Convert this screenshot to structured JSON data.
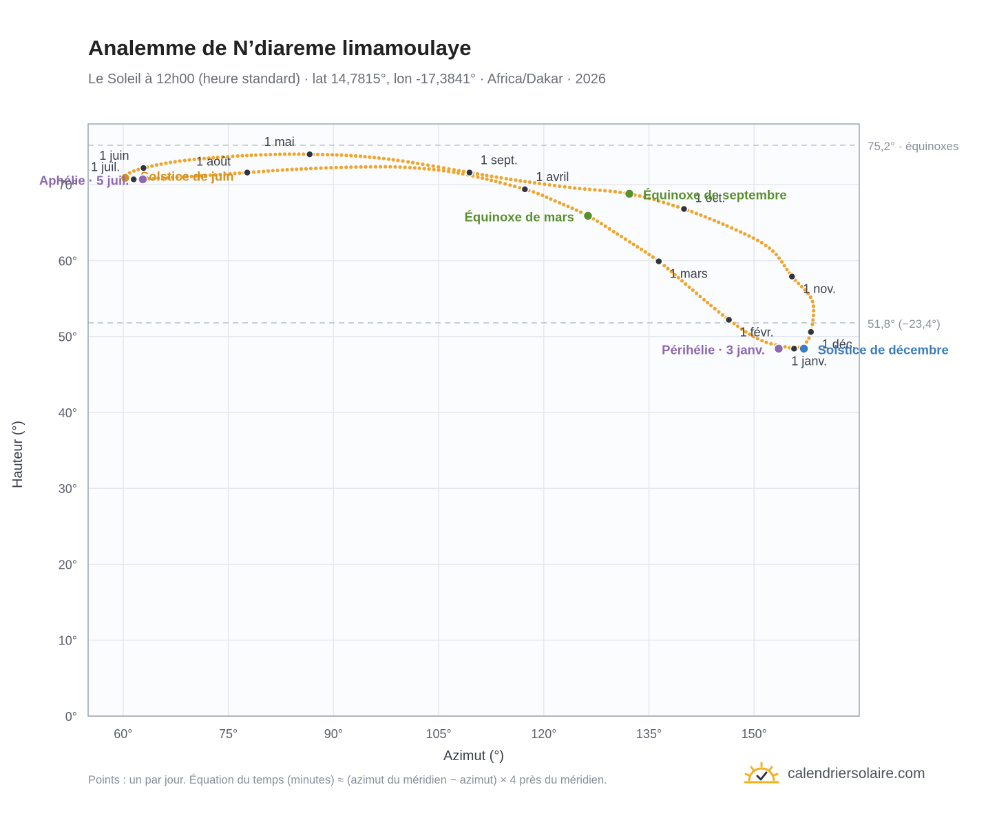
{
  "title": "Analemme de N’diareme limamoulaye",
  "subtitle": "Le Soleil à 12h00 (heure standard) · lat 14,7815°, lon -17,3841° · Africa/Dakar · 2026",
  "footnote": "Points : un par jour. Équation du temps (minutes) ≈ (azimut du méridien − azimut) × 4 près du méridien.",
  "brand": {
    "name": "calendriersolaire.com",
    "icon": "sun-checkmark-icon"
  },
  "colors": {
    "curve": "#f2a42a",
    "month_marker": "#2f343e",
    "equinox": "#5a8f2e",
    "solstice_june": "#d4921e",
    "solstice_december": "#3a7dc4",
    "apsis": "#8e68b0",
    "reference_line": "#b8c0cc",
    "plot_background": "#fbfcfe",
    "grid": "#e3e8ef",
    "axis_frame": "#9aa3b0"
  },
  "chart_data": {
    "type": "scatter",
    "xlabel": "Azimut (°)",
    "ylabel": "Hauteur (°)",
    "xlim": [
      55,
      165
    ],
    "ylim": [
      0,
      78
    ],
    "x_ticks": [
      {
        "value": 60,
        "label": "60°"
      },
      {
        "value": 75,
        "label": "75°"
      },
      {
        "value": 90,
        "label": "90°"
      },
      {
        "value": 105,
        "label": "105°"
      },
      {
        "value": 120,
        "label": "120°"
      },
      {
        "value": 135,
        "label": "135°"
      },
      {
        "value": 150,
        "label": "150°"
      }
    ],
    "y_ticks": [
      {
        "value": 0,
        "label": "0°"
      },
      {
        "value": 10,
        "label": "10°"
      },
      {
        "value": 20,
        "label": "20°"
      },
      {
        "value": 30,
        "label": "30°"
      },
      {
        "value": 40,
        "label": "40°"
      },
      {
        "value": 50,
        "label": "50°"
      },
      {
        "value": 60,
        "label": "60°"
      },
      {
        "value": 70,
        "label": "70°"
      }
    ],
    "grid": true,
    "reference_lines": [
      {
        "y": 75.2,
        "label": "75,2° · équinoxes"
      },
      {
        "y": 51.8,
        "label": "51,8° (−23,4°)"
      }
    ],
    "path_points": [
      {
        "az": 155.7,
        "alt": 48.4
      },
      {
        "az": 151.0,
        "alt": 49.5
      },
      {
        "az": 146.4,
        "alt": 52.2
      },
      {
        "az": 141.0,
        "alt": 56.3
      },
      {
        "az": 136.4,
        "alt": 59.9
      },
      {
        "az": 131.0,
        "alt": 63.2
      },
      {
        "az": 126.3,
        "alt": 65.9
      },
      {
        "az": 121.5,
        "alt": 67.9
      },
      {
        "az": 117.3,
        "alt": 69.4
      },
      {
        "az": 108.0,
        "alt": 71.5
      },
      {
        "az": 100.0,
        "alt": 72.3
      },
      {
        "az": 92.0,
        "alt": 72.3
      },
      {
        "az": 84.0,
        "alt": 72.0
      },
      {
        "az": 77.7,
        "alt": 71.6
      },
      {
        "az": 70.0,
        "alt": 71.1
      },
      {
        "az": 64.0,
        "alt": 70.8
      },
      {
        "az": 62.8,
        "alt": 70.7
      },
      {
        "az": 61.5,
        "alt": 70.7
      },
      {
        "az": 60.3,
        "alt": 70.9
      },
      {
        "az": 60.6,
        "alt": 71.4
      },
      {
        "az": 62.9,
        "alt": 72.2
      },
      {
        "az": 68.0,
        "alt": 73.1
      },
      {
        "az": 75.0,
        "alt": 73.7
      },
      {
        "az": 82.0,
        "alt": 74.0
      },
      {
        "az": 86.6,
        "alt": 74.0
      },
      {
        "az": 93.0,
        "alt": 73.8
      },
      {
        "az": 100.0,
        "alt": 73.1
      },
      {
        "az": 109.4,
        "alt": 71.6
      },
      {
        "az": 116.0,
        "alt": 70.6
      },
      {
        "az": 124.0,
        "alt": 69.6
      },
      {
        "az": 132.2,
        "alt": 68.8
      },
      {
        "az": 140.0,
        "alt": 66.8
      },
      {
        "az": 148.0,
        "alt": 63.8
      },
      {
        "az": 152.5,
        "alt": 61.4
      },
      {
        "az": 155.4,
        "alt": 57.9
      },
      {
        "az": 158.3,
        "alt": 54.7
      },
      {
        "az": 158.1,
        "alt": 50.6
      },
      {
        "az": 157.1,
        "alt": 48.9
      },
      {
        "az": 155.7,
        "alt": 48.4
      }
    ],
    "month_markers": [
      {
        "label": "1 janv.",
        "az": 155.7,
        "alt": 48.4
      },
      {
        "label": "1 févr.",
        "az": 146.4,
        "alt": 52.2
      },
      {
        "label": "1 mars",
        "az": 136.4,
        "alt": 59.9
      },
      {
        "label": "1 avril",
        "az": 117.3,
        "alt": 69.4
      },
      {
        "label": "1 mai",
        "az": 86.6,
        "alt": 74.0
      },
      {
        "label": "1 juin",
        "az": 62.9,
        "alt": 72.2
      },
      {
        "label": "1 juil.",
        "az": 61.5,
        "alt": 70.7
      },
      {
        "label": "1 août",
        "az": 77.7,
        "alt": 71.6
      },
      {
        "label": "1 sept.",
        "az": 109.4,
        "alt": 71.6
      },
      {
        "label": "1 oct.",
        "az": 140.0,
        "alt": 66.8
      },
      {
        "label": "1 nov.",
        "az": 155.4,
        "alt": 57.9
      },
      {
        "label": "1 déc.",
        "az": 158.1,
        "alt": 50.6
      }
    ],
    "events": [
      {
        "label": "Équinoxe de mars",
        "az": 126.3,
        "alt": 65.9,
        "color_key": "equinox"
      },
      {
        "label": "Équinoxe de septembre",
        "az": 132.2,
        "alt": 68.8,
        "color_key": "equinox"
      },
      {
        "label": "Solstice de juin",
        "az": 60.3,
        "alt": 70.9,
        "color_key": "solstice_june"
      },
      {
        "label": "Solstice de décembre",
        "az": 157.1,
        "alt": 48.4,
        "color_key": "solstice_december"
      },
      {
        "label": "Aphélie · 5 juil.",
        "az": 62.8,
        "alt": 70.7,
        "color_key": "apsis"
      },
      {
        "label": "Périhélie · 3 janv.",
        "az": 153.5,
        "alt": 48.4,
        "color_key": "apsis"
      }
    ]
  }
}
